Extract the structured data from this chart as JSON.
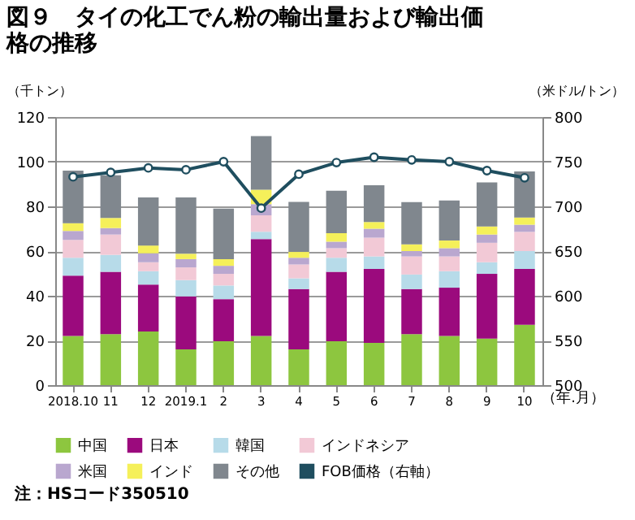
{
  "chart_data": {
    "type": "bar",
    "stacked": true,
    "title": "図９　タイの化工でん粉の輸出量および輸出価格の推移",
    "ylabel": "（千トン）",
    "y2label": "（米ドル/トン）",
    "xlabel": "（年.月）",
    "categories": [
      "2018.10",
      "11",
      "12",
      "2019.1",
      "2",
      "3",
      "4",
      "5",
      "6",
      "7",
      "8",
      "9",
      "10"
    ],
    "series": [
      {
        "name": "中国",
        "color": "#8dc63f",
        "values": [
          22,
          22.8,
          24,
          16,
          19.6,
          22,
          16,
          19.6,
          18.9,
          22.8,
          22,
          20.8,
          27
        ]
      },
      {
        "name": "日本",
        "color": "#9b0a7d",
        "values": [
          27,
          27.9,
          21,
          23.7,
          18.9,
          43.4,
          27,
          31.1,
          33.1,
          20.2,
          21.6,
          29,
          25
        ]
      },
      {
        "name": "韓国",
        "color": "#b7dbe9",
        "values": [
          8,
          7.6,
          6,
          7.3,
          6.1,
          3.2,
          4.8,
          6.3,
          5.6,
          6.5,
          7.4,
          5.2,
          8
        ]
      },
      {
        "name": "インドネシア",
        "color": "#f2c9d6",
        "values": [
          8,
          9.1,
          4,
          5.7,
          5.2,
          7.4,
          6.2,
          4.3,
          8.4,
          8.1,
          6.6,
          8.7,
          8.6
        ]
      },
      {
        "name": "米国",
        "color": "#b9a7cf",
        "values": [
          4,
          2.9,
          4,
          3.7,
          3.6,
          5,
          3,
          2.9,
          4,
          2.4,
          3.7,
          3.7,
          3.2
        ]
      },
      {
        "name": "インド",
        "color": "#f5f05a",
        "values": [
          3.5,
          4.5,
          3.5,
          2.4,
          3,
          6.5,
          2.6,
          3.8,
          3,
          3,
          3.4,
          3.6,
          3.2
        ]
      },
      {
        "name": "その他",
        "color": "#80878e",
        "values": [
          23.5,
          19.1,
          21.5,
          25.2,
          22.6,
          24,
          22.4,
          19,
          16.5,
          18.9,
          17.9,
          19.7,
          20.6
        ]
      },
      {
        "name": "FOB価格（右軸）",
        "type": "line",
        "axis": "y2",
        "color": "#1f4e5f",
        "marker": "circle",
        "values": [
          733,
          738,
          743,
          741,
          750,
          698,
          736,
          749,
          755,
          752,
          750,
          740,
          732
        ]
      }
    ],
    "ylim": [
      0,
      120
    ],
    "yticks": [
      0,
      20,
      40,
      60,
      80,
      100,
      120
    ],
    "y2lim": [
      500,
      800
    ],
    "y2ticks": [
      500,
      550,
      600,
      650,
      700,
      750,
      800
    ],
    "grid": "y",
    "legend": "bottom",
    "annotations": [
      "注：HSコード350510"
    ]
  }
}
